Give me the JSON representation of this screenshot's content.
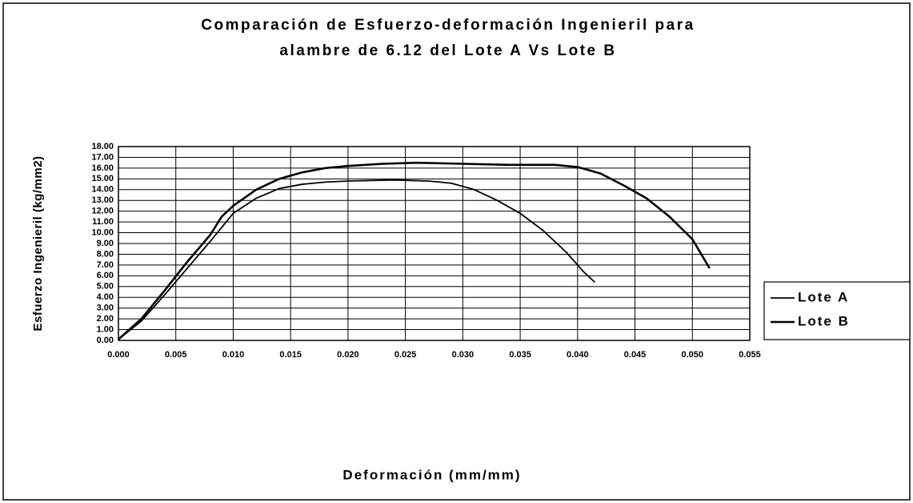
{
  "chart_data": {
    "type": "line",
    "title": [
      "Comparación de Esfuerzo-deformación Ingenieril para",
      "alambre de 6.12 del Lote A Vs Lote B"
    ],
    "xlabel": "Deformación (mm/mm)",
    "ylabel": "Esfuerzo Ingenieril (kg/mm2)",
    "xlim": [
      0,
      0.055
    ],
    "xticks": [
      {
        "value": 0,
        "label": "0.000"
      },
      {
        "value": 0.005,
        "label": "0.005"
      },
      {
        "value": 0.01,
        "label": "0.010"
      },
      {
        "value": 0.015,
        "label": "0.015"
      },
      {
        "value": 0.02,
        "label": "0.020"
      },
      {
        "value": 0.025,
        "label": "0.025"
      },
      {
        "value": 0.03,
        "label": "0.030"
      },
      {
        "value": 0.035,
        "label": "0.035"
      },
      {
        "value": 0.04,
        "label": "0.040"
      },
      {
        "value": 0.045,
        "label": "0.045"
      },
      {
        "value": 0.05,
        "label": "0.050"
      },
      {
        "value": 0.055,
        "label": "0.055"
      }
    ],
    "ylim": [
      0,
      18
    ],
    "yticks": [
      {
        "value": 0,
        "label": "0.00"
      },
      {
        "value": 1,
        "label": "1.00"
      },
      {
        "value": 2,
        "label": "2.00"
      },
      {
        "value": 3,
        "label": "3.00"
      },
      {
        "value": 4,
        "label": "4.00"
      },
      {
        "value": 5,
        "label": "5.00"
      },
      {
        "value": 6,
        "label": "6.00"
      },
      {
        "value": 7,
        "label": "7.00"
      },
      {
        "value": 8,
        "label": "8.00"
      },
      {
        "value": 9,
        "label": "9.00"
      },
      {
        "value": 10,
        "label": "10.00"
      },
      {
        "value": 11,
        "label": "11.00"
      },
      {
        "value": 12,
        "label": "12.00"
      },
      {
        "value": 13,
        "label": "13.00"
      },
      {
        "value": 14,
        "label": "14.00"
      },
      {
        "value": 15,
        "label": "15.00"
      },
      {
        "value": 16,
        "label": "16.00"
      },
      {
        "value": 17,
        "label": "17.00"
      },
      {
        "value": 18,
        "label": "18.00"
      }
    ],
    "grid": true,
    "legend": "right",
    "series": [
      {
        "name": "Lote A",
        "color": "#000000",
        "width": 1.8,
        "x": [
          0,
          0.002,
          0.004,
          0.006,
          0.008,
          0.01,
          0.012,
          0.014,
          0.016,
          0.018,
          0.02,
          0.024,
          0.027,
          0.029,
          0.031,
          0.033,
          0.035,
          0.037,
          0.039,
          0.0405,
          0.0415
        ],
        "values": [
          0.1,
          1.8,
          4.2,
          6.7,
          9.2,
          11.8,
          13.2,
          14.1,
          14.5,
          14.7,
          14.8,
          14.9,
          14.8,
          14.6,
          14,
          13,
          11.8,
          10.2,
          8.2,
          6.4,
          5.4
        ]
      },
      {
        "name": "Lote B",
        "color": "#000000",
        "width": 2.6,
        "x": [
          0,
          0.002,
          0.004,
          0.006,
          0.008,
          0.009,
          0.01,
          0.012,
          0.014,
          0.016,
          0.018,
          0.02,
          0.023,
          0.026,
          0.03,
          0.034,
          0.038,
          0.04,
          0.042,
          0.044,
          0.046,
          0.048,
          0.05,
          0.0515
        ],
        "values": [
          0.1,
          2,
          4.6,
          7.3,
          9.8,
          11.5,
          12.5,
          14,
          15,
          15.6,
          16,
          16.2,
          16.4,
          16.5,
          16.4,
          16.3,
          16.3,
          16.1,
          15.5,
          14.4,
          13.2,
          11.5,
          9.4,
          6.7
        ]
      }
    ]
  }
}
